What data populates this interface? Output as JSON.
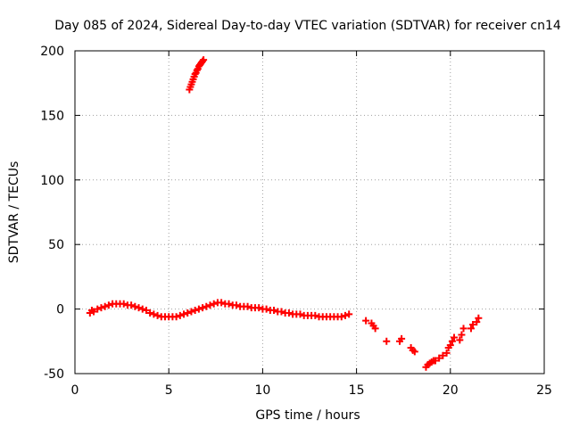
{
  "chart_data": {
    "type": "scatter",
    "title": "Day 085 of 2024, Sidereal Day-to-day VTEC variation (SDTVAR) for receiver cn14",
    "xlabel": "GPS time / hours",
    "ylabel": "SDTVAR / TECUs",
    "xlim": [
      0,
      25
    ],
    "ylim": [
      -50,
      200
    ],
    "xticks": [
      0,
      5,
      10,
      15,
      20,
      25
    ],
    "yticks": [
      -50,
      0,
      50,
      100,
      150,
      200
    ],
    "grid": true,
    "marker": "+",
    "color": "#ff0000",
    "series": [
      {
        "name": "main",
        "x": [
          0.8,
          0.9,
          1.0,
          1.2,
          1.4,
          1.6,
          1.8,
          2.0,
          2.2,
          2.4,
          2.6,
          2.8,
          3.0,
          3.2,
          3.4,
          3.6,
          3.8,
          4.0,
          4.2,
          4.4,
          4.6,
          4.8,
          5.0,
          5.2,
          5.4,
          5.6,
          5.8,
          6.0,
          6.2,
          6.4,
          6.6,
          6.8,
          7.0,
          7.2,
          7.4,
          7.6,
          7.8,
          8.0,
          8.2,
          8.4,
          8.6,
          8.8,
          9.0,
          9.2,
          9.4,
          9.6,
          9.8,
          10.0,
          10.2,
          10.4,
          10.6,
          10.8,
          11.0,
          11.2,
          11.4,
          11.6,
          11.8,
          12.0,
          12.2,
          12.4,
          12.6,
          12.8,
          13.0,
          13.2,
          13.4,
          13.6,
          13.8,
          14.0,
          14.2,
          14.4,
          14.6
        ],
        "y": [
          -3,
          -1,
          -2,
          0,
          1,
          2,
          3,
          4,
          4,
          4,
          4,
          3,
          3,
          2,
          1,
          0,
          -1,
          -3,
          -4,
          -5,
          -6,
          -6,
          -6,
          -6,
          -6,
          -5,
          -4,
          -3,
          -2,
          -1,
          0,
          1,
          2,
          3,
          4,
          5,
          5,
          4,
          4,
          3,
          3,
          2,
          2,
          2,
          1,
          1,
          1,
          0,
          0,
          -1,
          -1,
          -2,
          -2,
          -3,
          -3,
          -4,
          -4,
          -4,
          -5,
          -5,
          -5,
          -5,
          -6,
          -6,
          -6,
          -6,
          -6,
          -6,
          -6,
          -5,
          -4
        ]
      },
      {
        "name": "high-arc",
        "x": [
          6.1,
          6.15,
          6.2,
          6.25,
          6.3,
          6.35,
          6.4,
          6.45,
          6.5,
          6.55,
          6.6,
          6.65,
          6.7,
          6.75,
          6.8,
          6.85
        ],
        "y": [
          170,
          172,
          174,
          176,
          178,
          180,
          182,
          183,
          185,
          186,
          188,
          189,
          190,
          191,
          192,
          193
        ]
      },
      {
        "name": "clusters",
        "x": [
          15.5,
          15.8,
          15.9,
          16.0,
          16.6,
          17.3,
          17.4,
          17.9,
          18.0,
          18.1,
          18.7,
          18.8,
          18.9,
          19.0,
          19.1,
          19.2,
          19.4,
          19.6,
          19.8,
          19.9,
          20.0,
          20.1,
          20.2,
          20.5,
          20.6,
          20.7,
          21.1,
          21.2,
          21.4,
          21.5
        ],
        "y": [
          -9,
          -11,
          -13,
          -15,
          -25,
          -25,
          -23,
          -30,
          -32,
          -33,
          -45,
          -43,
          -42,
          -41,
          -40,
          -40,
          -38,
          -36,
          -34,
          -30,
          -28,
          -25,
          -22,
          -24,
          -20,
          -15,
          -15,
          -12,
          -10,
          -7
        ]
      }
    ]
  }
}
